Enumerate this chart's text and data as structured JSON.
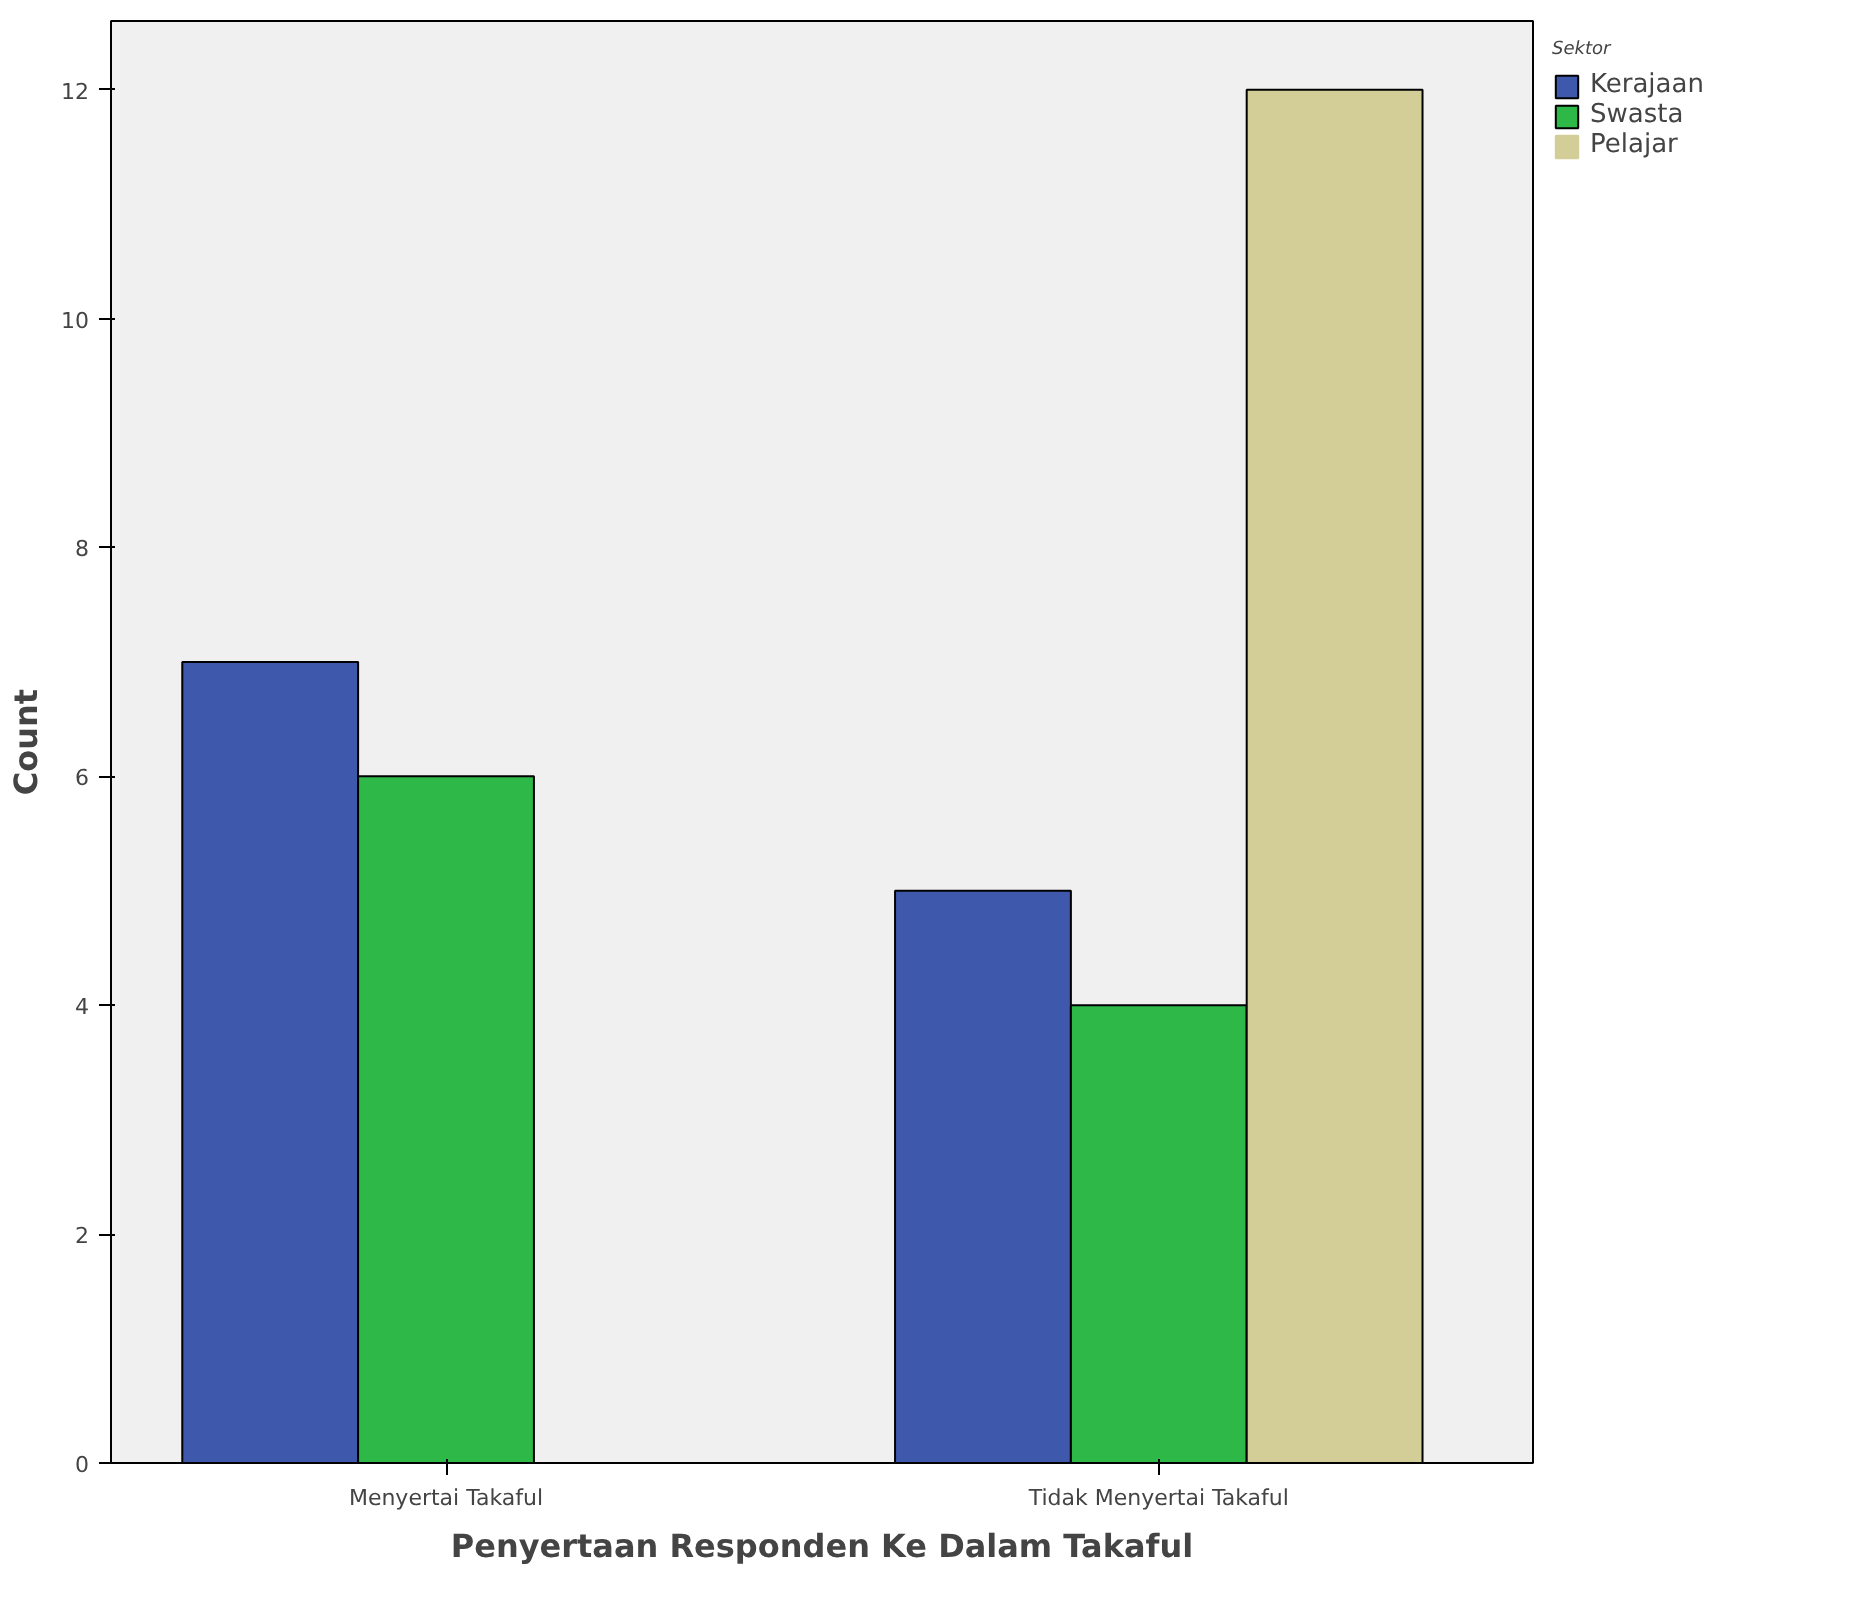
{
  "chart_data": {
    "type": "bar",
    "xlabel": "Penyertaan Responden Ke Dalam Takaful",
    "ylabel": "Count",
    "legend_title": "Sektor",
    "categories": [
      "Menyertai Takaful",
      "Tidak Menyertai Takaful"
    ],
    "series": [
      {
        "name": "Kerajaan",
        "color": "#3e58ac",
        "values": [
          7,
          5
        ]
      },
      {
        "name": "Swasta",
        "color": "#2eb848",
        "values": [
          6,
          4
        ]
      },
      {
        "name": "Pelajar",
        "color": "#d3ce97",
        "values": [
          0,
          12
        ]
      }
    ],
    "ylim": [
      0,
      12.6
    ],
    "yticks": [
      0,
      2,
      4,
      6,
      8,
      10,
      12
    ],
    "grid": false,
    "legend": "top right"
  }
}
